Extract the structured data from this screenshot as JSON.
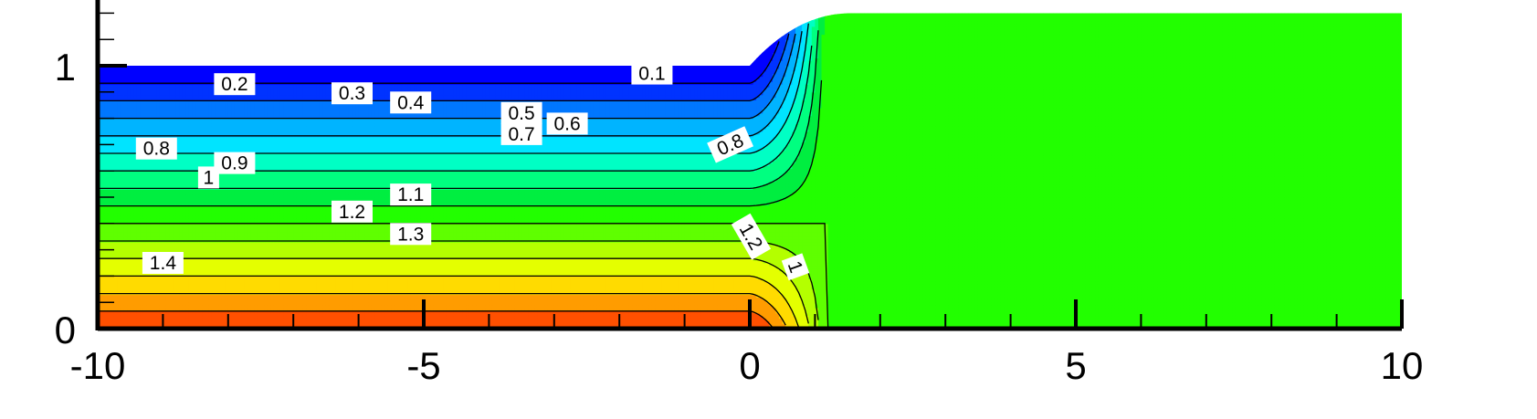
{
  "chart_data": {
    "type": "contour",
    "title": "",
    "xlabel": "",
    "ylabel": "",
    "xlim": [
      -10,
      10
    ],
    "ylim": [
      0,
      1.2
    ],
    "x_ticks": [
      -10,
      -5,
      0,
      5,
      10
    ],
    "x_tick_labels": [
      "-10",
      "-5",
      "0",
      "5",
      "10"
    ],
    "y_ticks": [
      0,
      1
    ],
    "y_tick_labels": [
      "0",
      "1"
    ],
    "colormap": "rainbow (blue low, red high)",
    "upstream_depth": 1.0,
    "downstream_depth": 1.2,
    "downstream_value": 0.9,
    "levels": [
      0.1,
      0.2,
      0.3,
      0.4,
      0.5,
      0.6,
      0.7,
      0.8,
      0.9,
      1.0,
      1.1,
      1.2,
      1.3,
      1.4
    ],
    "level_colors": [
      "#0000ff",
      "#0033ff",
      "#0077ff",
      "#00b4ff",
      "#00e4ff",
      "#00ffc4",
      "#00ff80",
      "#00ee40",
      "#22ff00",
      "#5fff00",
      "#b4ff00",
      "#e4ff00",
      "#ffdb00",
      "#ff9c00",
      "#ff5000",
      "#ff0000"
    ],
    "contour_labels": [
      {
        "text": "0.1",
        "x": -1.5,
        "y": 0.97
      },
      {
        "text": "0.2",
        "x": -7.9,
        "y": 0.93
      },
      {
        "text": "0.3",
        "x": -6.1,
        "y": 0.895
      },
      {
        "text": "0.4",
        "x": -5.2,
        "y": 0.86
      },
      {
        "text": "0.5",
        "x": -3.5,
        "y": 0.82
      },
      {
        "text": "0.6",
        "x": -2.8,
        "y": 0.78
      },
      {
        "text": "0.7",
        "x": -3.5,
        "y": 0.74
      },
      {
        "text": "0.8",
        "x": -9.1,
        "y": 0.685
      },
      {
        "text": "0.9",
        "x": -7.9,
        "y": 0.63
      },
      {
        "text": "1",
        "x": -8.3,
        "y": 0.575
      },
      {
        "text": "1.1",
        "x": -5.2,
        "y": 0.51
      },
      {
        "text": "1.2",
        "x": -6.1,
        "y": 0.445
      },
      {
        "text": "1.3",
        "x": -5.2,
        "y": 0.36
      },
      {
        "text": "1.4",
        "x": -9.0,
        "y": 0.25
      },
      {
        "text": "0.8",
        "x": -0.3,
        "y": 0.7,
        "angle": -24
      },
      {
        "text": "1.2",
        "x": 0.02,
        "y": 0.35,
        "angle": 60
      },
      {
        "text": "1",
        "x": 0.7,
        "y": 0.235,
        "angle": 70
      }
    ]
  }
}
